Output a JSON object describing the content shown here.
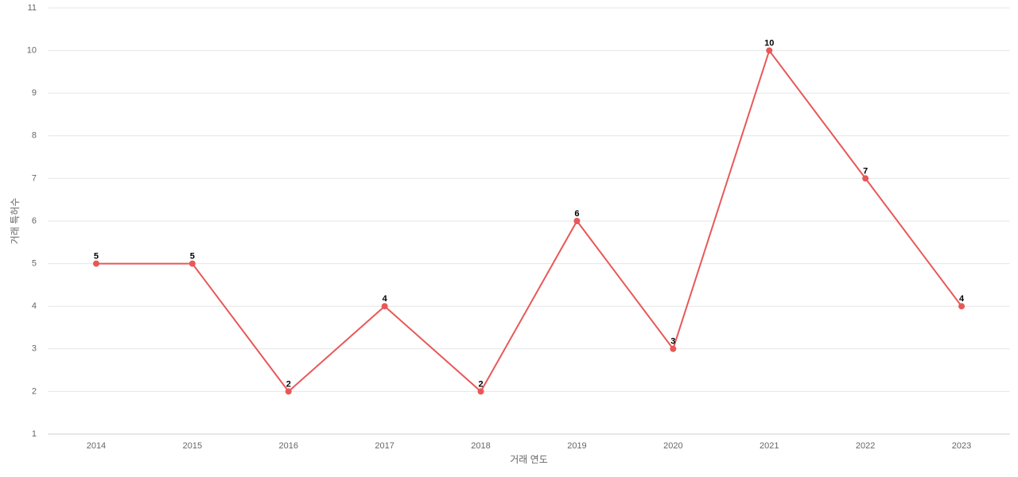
{
  "chart_data": {
    "type": "line",
    "x_label": "거래 연도",
    "y_label": "거래 특허수",
    "categories": [
      "2014",
      "2015",
      "2016",
      "2017",
      "2018",
      "2019",
      "2020",
      "2021",
      "2022",
      "2023"
    ],
    "values": [
      5,
      5,
      2,
      4,
      2,
      6,
      3,
      10,
      7,
      4
    ],
    "color": "#e85858",
    "ylim": [
      1,
      11
    ],
    "yticks": [
      1,
      2,
      3,
      4,
      5,
      6,
      7,
      8,
      9,
      10,
      11
    ],
    "grid": true
  }
}
